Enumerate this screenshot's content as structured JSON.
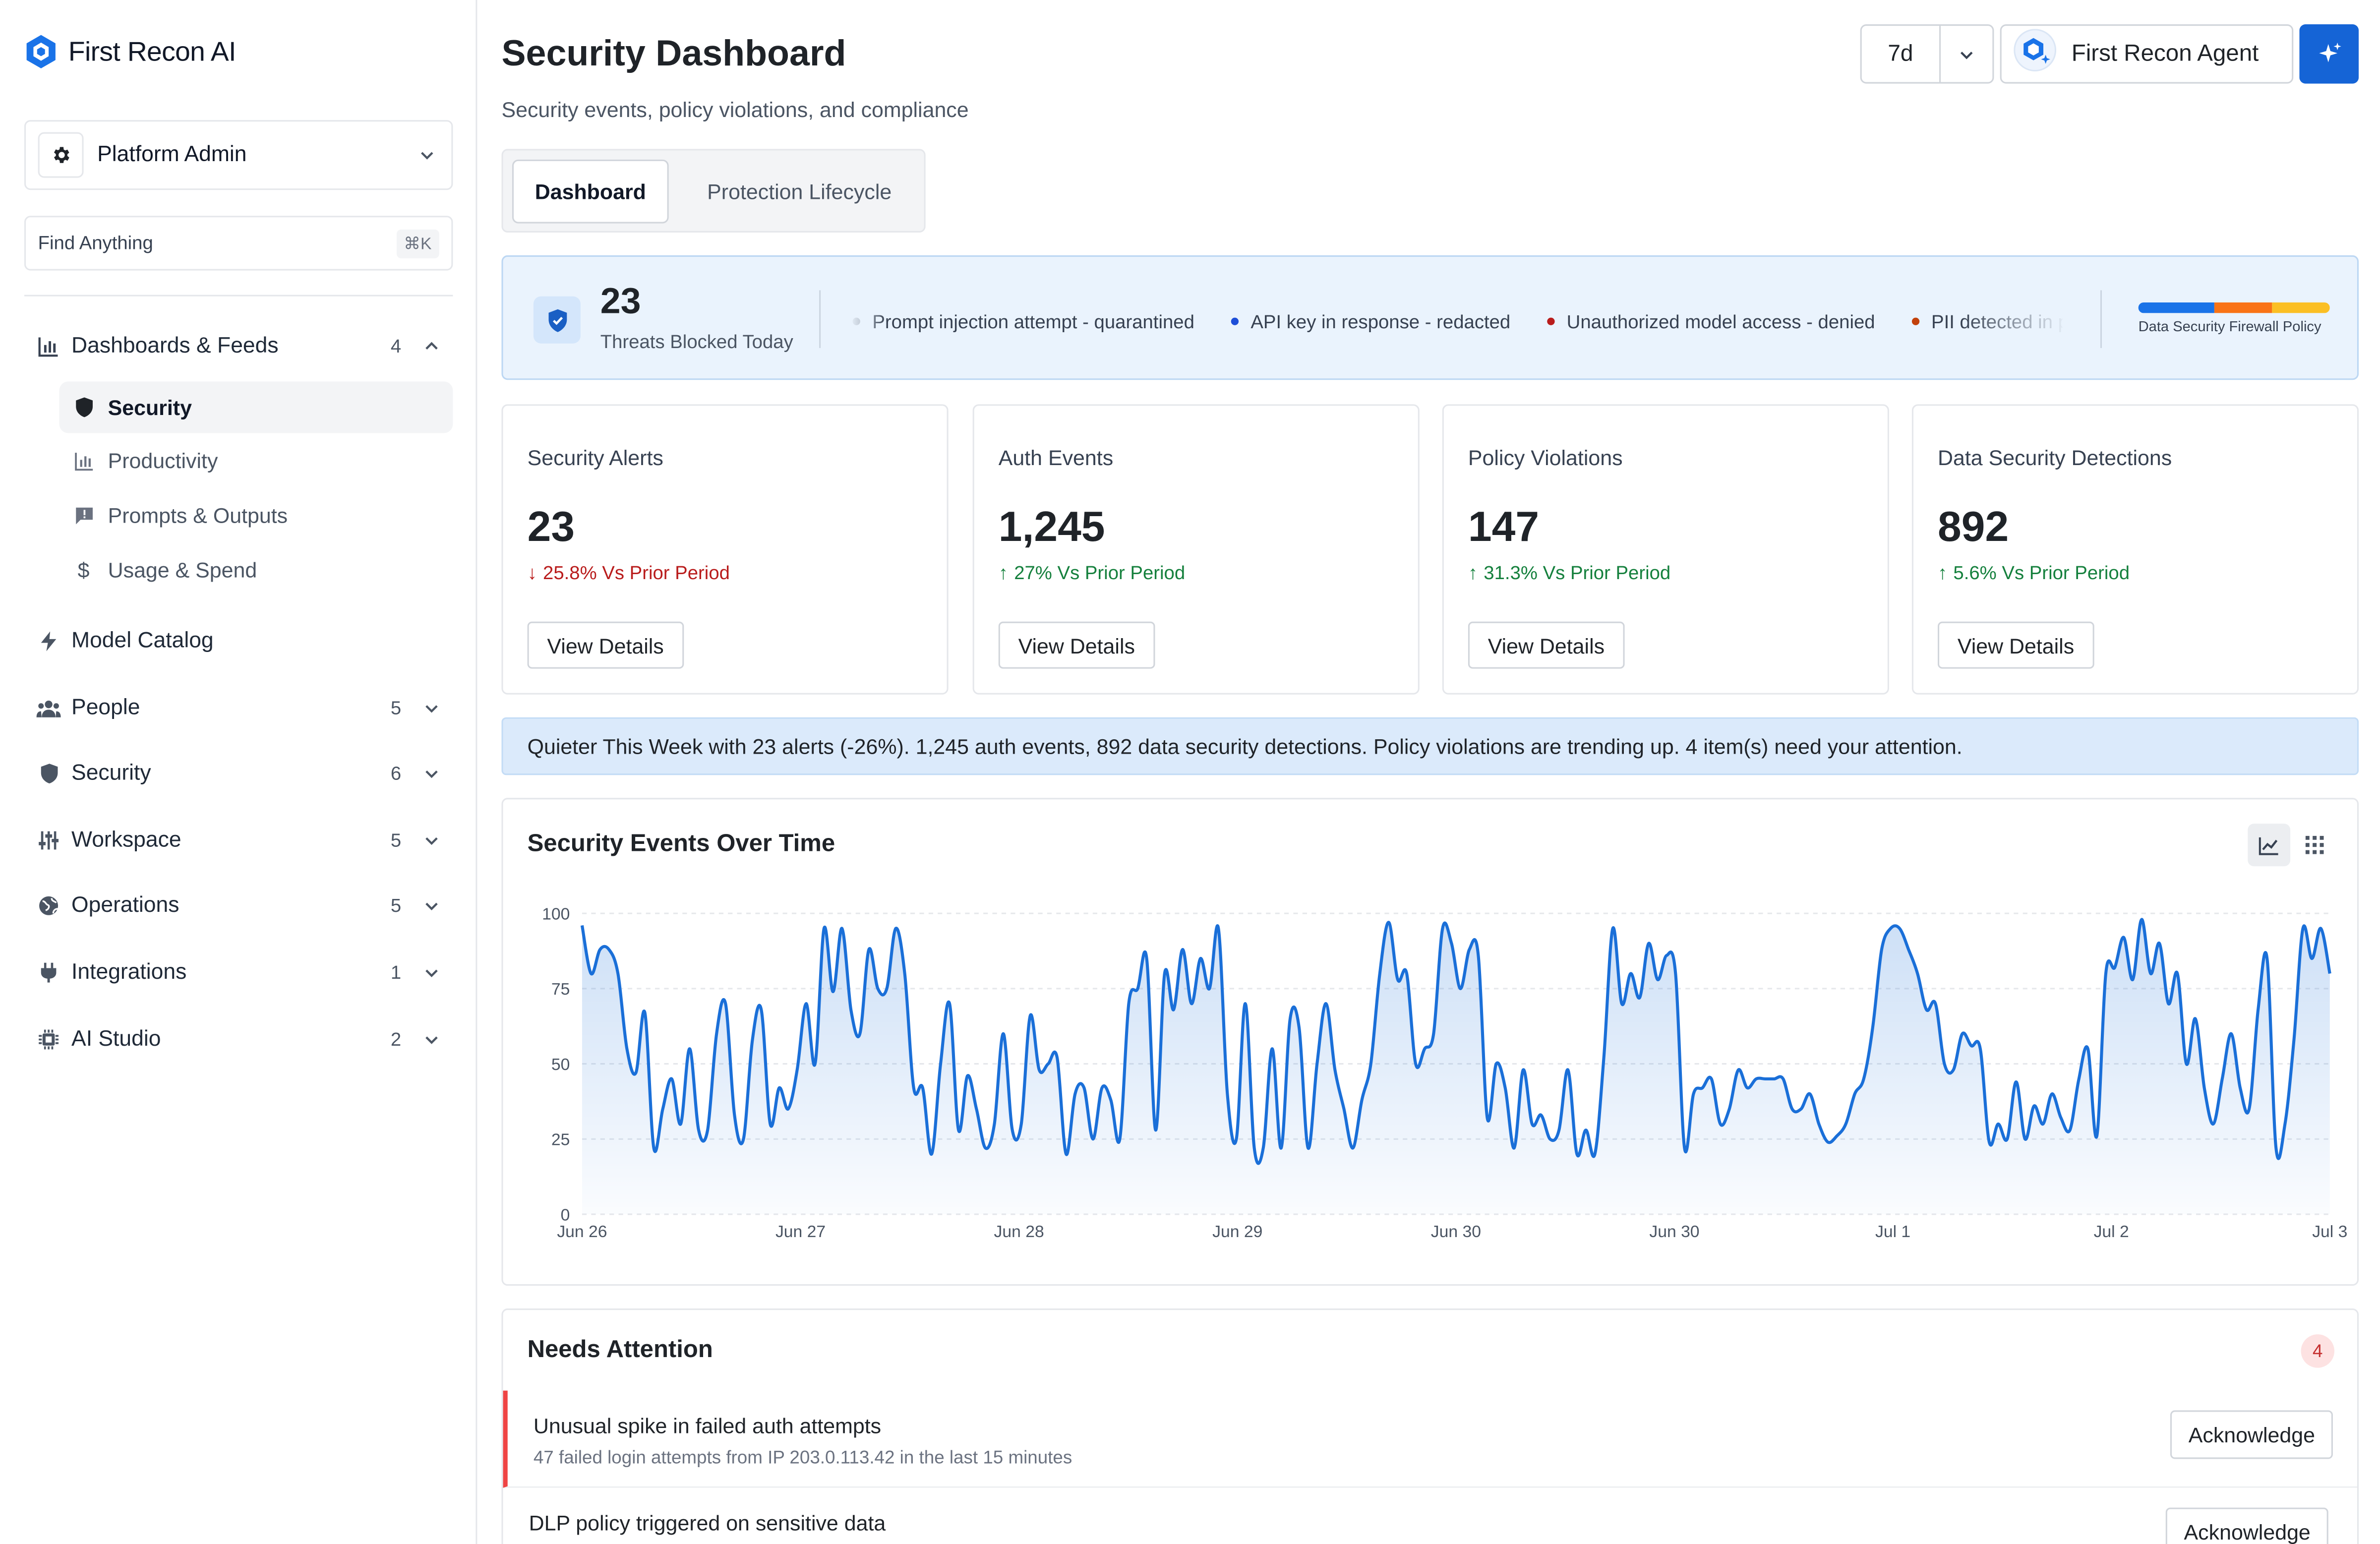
{
  "app": {
    "name": "First Recon AI"
  },
  "sidebar": {
    "org": "Platform Admin",
    "search": {
      "placeholder": "Find Anything",
      "shortcut": "⌘K"
    },
    "dashboards": {
      "label": "Dashboards & Feeds",
      "count": "4",
      "items": [
        {
          "label": "Security",
          "icon": "shield-icon",
          "active": true
        },
        {
          "label": "Productivity",
          "icon": "bar-chart-icon"
        },
        {
          "label": "Prompts & Outputs",
          "icon": "message-alert-icon"
        },
        {
          "label": "Usage & Spend",
          "icon": "dollar-icon"
        }
      ]
    },
    "groups": [
      {
        "label": "Model Catalog",
        "icon": "bolt-icon",
        "count": ""
      },
      {
        "label": "People",
        "icon": "people-icon",
        "count": "5"
      },
      {
        "label": "Security",
        "icon": "shield-icon",
        "count": "6"
      },
      {
        "label": "Workspace",
        "icon": "sliders-icon",
        "count": "5"
      },
      {
        "label": "Operations",
        "icon": "globe-icon",
        "count": "5"
      },
      {
        "label": "Integrations",
        "icon": "plug-icon",
        "count": "1"
      },
      {
        "label": "AI Studio",
        "icon": "chip-icon",
        "count": "2"
      }
    ]
  },
  "header": {
    "title": "Security Dashboard",
    "subtitle": "Security events, policy violations, and compliance",
    "period": "7d",
    "agent_label": "First Recon Agent"
  },
  "tabs": [
    "Dashboard",
    "Protection Lifecycle"
  ],
  "threat_banner": {
    "count": "23",
    "label": "Threats Blocked Today",
    "ticker": [
      {
        "text": "Prompt injection attempt - quarantined",
        "color": "#6b7280"
      },
      {
        "text": "API key in response - redacted",
        "color": "#1d4ed8"
      },
      {
        "text": "Unauthorized model access - denied",
        "color": "#b91c1c"
      },
      {
        "text": "PII detected in prompt",
        "color": "#c2410c"
      }
    ],
    "policy_label": "Data Security Firewall Policy",
    "policy_segments": [
      {
        "color": "#1a73e8",
        "share": 0.4
      },
      {
        "color": "#f97316",
        "share": 0.3
      },
      {
        "color": "#fbbf24",
        "share": 0.3
      }
    ]
  },
  "kpis": [
    {
      "title": "Security Alerts",
      "value": "23",
      "delta": "25.8% Vs Prior Period",
      "direction": "down",
      "button": "View Details"
    },
    {
      "title": "Auth Events",
      "value": "1,245",
      "delta": "27% Vs Prior Period",
      "direction": "up",
      "button": "View Details"
    },
    {
      "title": "Policy Violations",
      "value": "147",
      "delta": "31.3% Vs Prior Period",
      "direction": "up",
      "button": "View Details"
    },
    {
      "title": "Data Security Detections",
      "value": "892",
      "delta": "5.6% Vs Prior Period",
      "direction": "up",
      "button": "View Details"
    }
  ],
  "summary": "Quieter This Week with 23 alerts (-26%). 1,245 auth events, 892 data security detections. Policy violations are trending up. 4 item(s) need your attention.",
  "chart_data": {
    "type": "area",
    "title": "Security Events Over Time",
    "ylim": [
      0,
      100
    ],
    "yticks": [
      0,
      25,
      50,
      75,
      100
    ],
    "xticks": [
      "Jun 26",
      "Jun 27",
      "Jun 28",
      "Jun 29",
      "Jun 30",
      "Jun 30",
      "Jul 1",
      "Jul 2",
      "Jul 3"
    ],
    "color": "#1a6fd8",
    "values": [
      96,
      80,
      88,
      88,
      80,
      55,
      47,
      67,
      22,
      35,
      45,
      30,
      55,
      28,
      28,
      60,
      70,
      33,
      25,
      58,
      68,
      30,
      42,
      35,
      48,
      70,
      50,
      95,
      74,
      95,
      68,
      60,
      88,
      75,
      75,
      95,
      80,
      42,
      42,
      20,
      50,
      70,
      28,
      46,
      35,
      22,
      30,
      60,
      28,
      30,
      66,
      48,
      50,
      52,
      20,
      40,
      42,
      25,
      42,
      38,
      25,
      70,
      75,
      85,
      28,
      80,
      68,
      88,
      70,
      85,
      75,
      95,
      40,
      25,
      70,
      22,
      22,
      55,
      22,
      65,
      62,
      22,
      50,
      70,
      48,
      35,
      22,
      38,
      50,
      80,
      97,
      78,
      80,
      50,
      55,
      60,
      95,
      90,
      75,
      88,
      86,
      32,
      50,
      42,
      22,
      48,
      30,
      33,
      25,
      28,
      48,
      20,
      28,
      20,
      52,
      95,
      70,
      80,
      72,
      90,
      78,
      86,
      80,
      22,
      40,
      42,
      45,
      30,
      35,
      48,
      42,
      45,
      45,
      45,
      45,
      35,
      35,
      40,
      30,
      24,
      26,
      30,
      40,
      45,
      62,
      88,
      95,
      95,
      88,
      80,
      68,
      70,
      50,
      48,
      60,
      56,
      55,
      24,
      30,
      25,
      44,
      25,
      36,
      30,
      40,
      32,
      28,
      45,
      55,
      26,
      80,
      82,
      92,
      78,
      98,
      80,
      90,
      70,
      80,
      50,
      65,
      42,
      30,
      45,
      60,
      42,
      35,
      68,
      85,
      22,
      30,
      58,
      95,
      85,
      95,
      80
    ]
  },
  "attention": {
    "title": "Needs Attention",
    "count": "4",
    "items": [
      {
        "title": "Unusual spike in failed auth attempts",
        "detail": "47 failed login attempts from IP 203.0.113.42 in the last 15 minutes",
        "action": "Acknowledge"
      },
      {
        "title": "DLP policy triggered on sensitive data",
        "detail": "",
        "action": "Acknowledge"
      }
    ]
  }
}
